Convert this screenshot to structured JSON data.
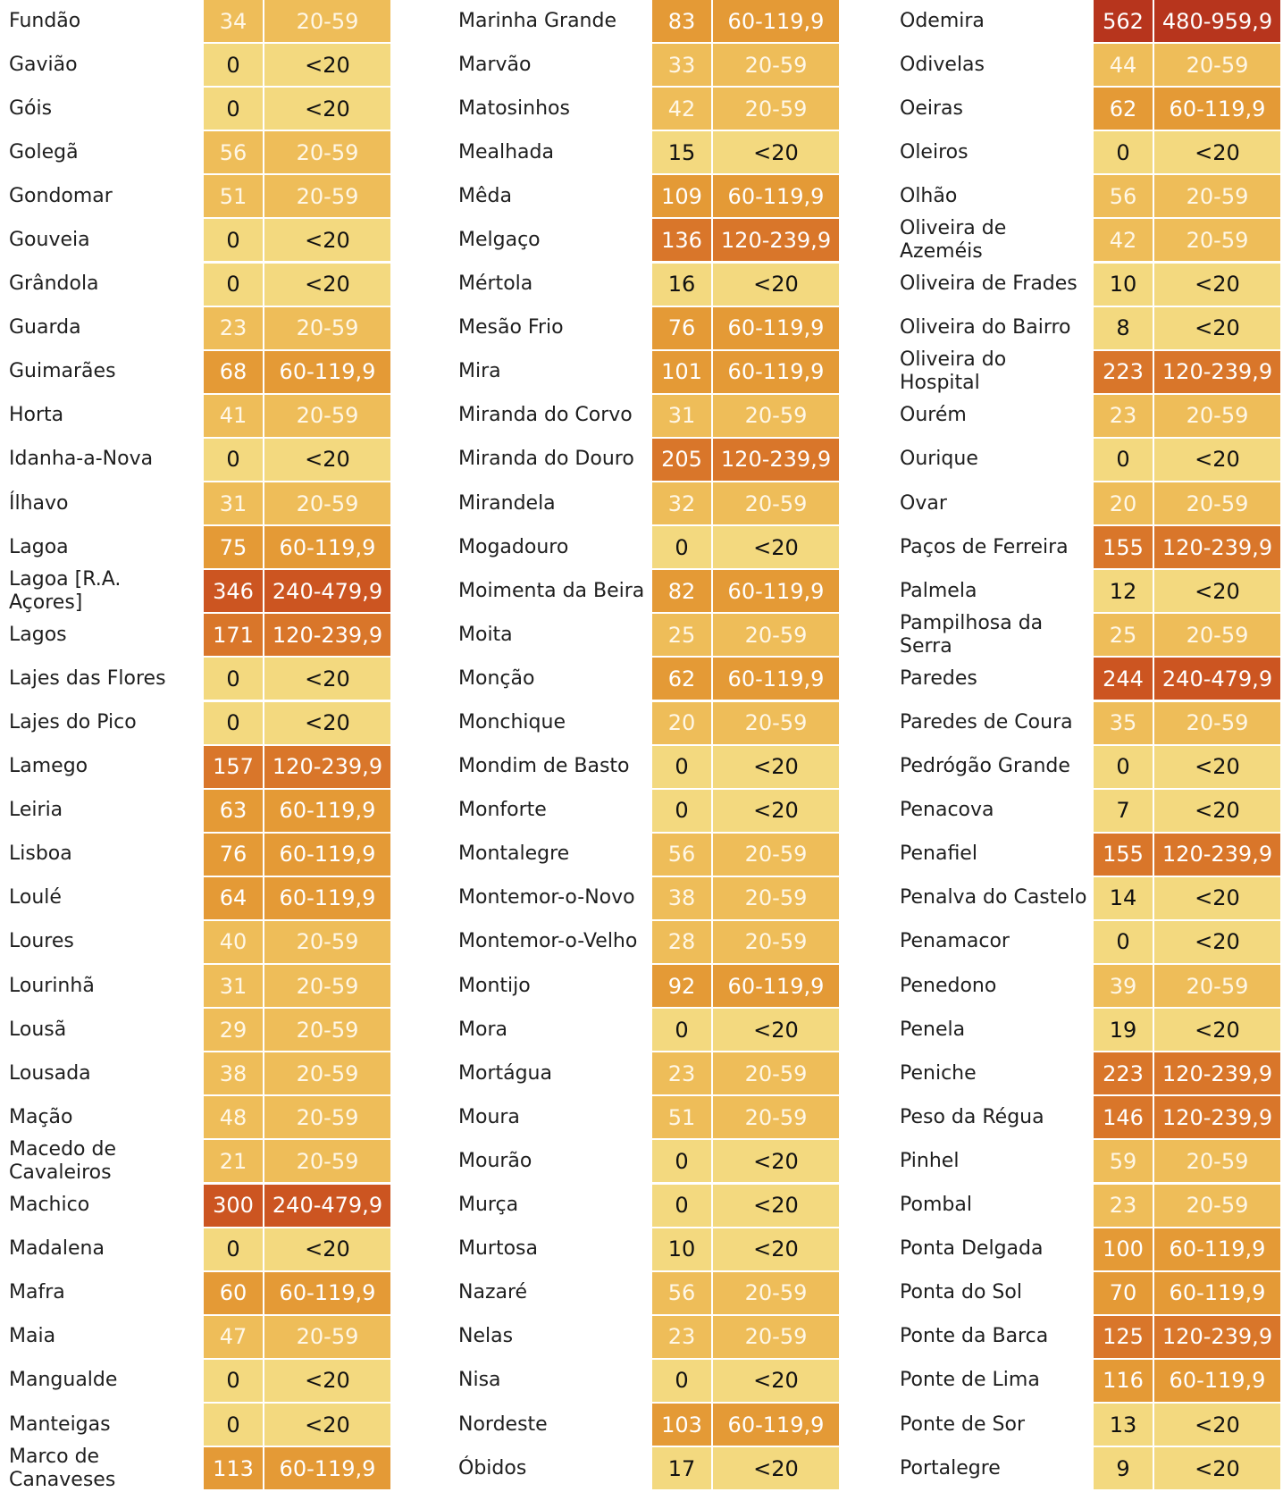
{
  "colors": {
    "<20": "#f3d97f",
    "20-59": "#eebd59",
    "60-119,9": "#e49a36",
    "120-239,9": "#d9762a",
    "240-479,9": "#cc5521",
    "480-959,9": "#b7351d"
  },
  "columns": [
    {
      "rows": [
        {
          "name": "Fundão",
          "value": "34",
          "range": "20-59"
        },
        {
          "name": "Gavião",
          "value": "0",
          "range": "<20"
        },
        {
          "name": "Góis",
          "value": "0",
          "range": "<20"
        },
        {
          "name": "Golegã",
          "value": "56",
          "range": "20-59"
        },
        {
          "name": "Gondomar",
          "value": "51",
          "range": "20-59"
        },
        {
          "name": "Gouveia",
          "value": "0",
          "range": "<20"
        },
        {
          "name": "Grândola",
          "value": "0",
          "range": "<20"
        },
        {
          "name": "Guarda",
          "value": "23",
          "range": "20-59"
        },
        {
          "name": "Guimarães",
          "value": "68",
          "range": "60-119,9"
        },
        {
          "name": "Horta",
          "value": "41",
          "range": "20-59"
        },
        {
          "name": "Idanha-a-Nova",
          "value": "0",
          "range": "<20"
        },
        {
          "name": "Ílhavo",
          "value": "31",
          "range": "20-59"
        },
        {
          "name": "Lagoa",
          "value": "75",
          "range": "60-119,9"
        },
        {
          "name": "Lagoa [R.A. Açores]",
          "value": "346",
          "range": "240-479,9"
        },
        {
          "name": "Lagos",
          "value": "171",
          "range": "120-239,9"
        },
        {
          "name": "Lajes das Flores",
          "value": "0",
          "range": "<20"
        },
        {
          "name": "Lajes do Pico",
          "value": "0",
          "range": "<20"
        },
        {
          "name": "Lamego",
          "value": "157",
          "range": "120-239,9"
        },
        {
          "name": "Leiria",
          "value": "63",
          "range": "60-119,9"
        },
        {
          "name": "Lisboa",
          "value": "76",
          "range": "60-119,9"
        },
        {
          "name": "Loulé",
          "value": "64",
          "range": "60-119,9"
        },
        {
          "name": "Loures",
          "value": "40",
          "range": "20-59"
        },
        {
          "name": "Lourinhã",
          "value": "31",
          "range": "20-59"
        },
        {
          "name": "Lousã",
          "value": "29",
          "range": "20-59"
        },
        {
          "name": "Lousada",
          "value": "38",
          "range": "20-59"
        },
        {
          "name": "Mação",
          "value": "48",
          "range": "20-59"
        },
        {
          "name": "Macedo de Cavaleiros",
          "value": "21",
          "range": "20-59"
        },
        {
          "name": "Machico",
          "value": "300",
          "range": "240-479,9"
        },
        {
          "name": "Madalena",
          "value": "0",
          "range": "<20"
        },
        {
          "name": "Mafra",
          "value": "60",
          "range": "60-119,9"
        },
        {
          "name": "Maia",
          "value": "47",
          "range": "20-59"
        },
        {
          "name": "Mangualde",
          "value": "0",
          "range": "<20"
        },
        {
          "name": "Manteigas",
          "value": "0",
          "range": "<20"
        },
        {
          "name": "Marco de Canaveses",
          "value": "113",
          "range": "60-119,9"
        }
      ]
    },
    {
      "rows": [
        {
          "name": "Marinha Grande",
          "value": "83",
          "range": "60-119,9"
        },
        {
          "name": "Marvão",
          "value": "33",
          "range": "20-59"
        },
        {
          "name": "Matosinhos",
          "value": "42",
          "range": "20-59"
        },
        {
          "name": "Mealhada",
          "value": "15",
          "range": "<20"
        },
        {
          "name": "Mêda",
          "value": "109",
          "range": "60-119,9"
        },
        {
          "name": "Melgaço",
          "value": "136",
          "range": "120-239,9"
        },
        {
          "name": "Mértola",
          "value": "16",
          "range": "<20"
        },
        {
          "name": "Mesão Frio",
          "value": "76",
          "range": "60-119,9"
        },
        {
          "name": "Mira",
          "value": "101",
          "range": "60-119,9"
        },
        {
          "name": "Miranda do Corvo",
          "value": "31",
          "range": "20-59"
        },
        {
          "name": "Miranda do Douro",
          "value": "205",
          "range": "120-239,9"
        },
        {
          "name": "Mirandela",
          "value": "32",
          "range": "20-59"
        },
        {
          "name": "Mogadouro",
          "value": "0",
          "range": "<20"
        },
        {
          "name": "Moimenta da Beira",
          "value": "82",
          "range": "60-119,9"
        },
        {
          "name": "Moita",
          "value": "25",
          "range": "20-59"
        },
        {
          "name": "Monção",
          "value": "62",
          "range": "60-119,9"
        },
        {
          "name": "Monchique",
          "value": "20",
          "range": "20-59"
        },
        {
          "name": "Mondim de Basto",
          "value": "0",
          "range": "<20"
        },
        {
          "name": "Monforte",
          "value": "0",
          "range": "<20"
        },
        {
          "name": "Montalegre",
          "value": "56",
          "range": "20-59"
        },
        {
          "name": "Montemor-o-Novo",
          "value": "38",
          "range": "20-59"
        },
        {
          "name": "Montemor-o-Velho",
          "value": "28",
          "range": "20-59"
        },
        {
          "name": "Montijo",
          "value": "92",
          "range": "60-119,9"
        },
        {
          "name": "Mora",
          "value": "0",
          "range": "<20"
        },
        {
          "name": "Mortágua",
          "value": "23",
          "range": "20-59"
        },
        {
          "name": "Moura",
          "value": "51",
          "range": "20-59"
        },
        {
          "name": "Mourão",
          "value": "0",
          "range": "<20"
        },
        {
          "name": "Murça",
          "value": "0",
          "range": "<20"
        },
        {
          "name": "Murtosa",
          "value": "10",
          "range": "<20"
        },
        {
          "name": "Nazaré",
          "value": "56",
          "range": "20-59"
        },
        {
          "name": "Nelas",
          "value": "23",
          "range": "20-59"
        },
        {
          "name": "Nisa",
          "value": "0",
          "range": "<20"
        },
        {
          "name": "Nordeste",
          "value": "103",
          "range": "60-119,9"
        },
        {
          "name": "Óbidos",
          "value": "17",
          "range": "<20"
        }
      ]
    },
    {
      "rows": [
        {
          "name": "Odemira",
          "value": "562",
          "range": "480-959,9"
        },
        {
          "name": "Odivelas",
          "value": "44",
          "range": "20-59"
        },
        {
          "name": "Oeiras",
          "value": "62",
          "range": "60-119,9"
        },
        {
          "name": "Oleiros",
          "value": "0",
          "range": "<20"
        },
        {
          "name": "Olhão",
          "value": "56",
          "range": "20-59"
        },
        {
          "name": "Oliveira de Azeméis",
          "value": "42",
          "range": "20-59"
        },
        {
          "name": "Oliveira de Frades",
          "value": "10",
          "range": "<20"
        },
        {
          "name": "Oliveira do Bairro",
          "value": "8",
          "range": "<20"
        },
        {
          "name": "Oliveira do Hospital",
          "value": "223",
          "range": "120-239,9"
        },
        {
          "name": "Ourém",
          "value": "23",
          "range": "20-59"
        },
        {
          "name": "Ourique",
          "value": "0",
          "range": "<20"
        },
        {
          "name": "Ovar",
          "value": "20",
          "range": "20-59"
        },
        {
          "name": "Paços de Ferreira",
          "value": "155",
          "range": "120-239,9"
        },
        {
          "name": "Palmela",
          "value": "12",
          "range": "<20"
        },
        {
          "name": "Pampilhosa da Serra",
          "value": "25",
          "range": "20-59"
        },
        {
          "name": "Paredes",
          "value": "244",
          "range": "240-479,9"
        },
        {
          "name": "Paredes de Coura",
          "value": "35",
          "range": "20-59"
        },
        {
          "name": "Pedrógão Grande",
          "value": "0",
          "range": "<20"
        },
        {
          "name": "Penacova",
          "value": "7",
          "range": "<20"
        },
        {
          "name": "Penafiel",
          "value": "155",
          "range": "120-239,9"
        },
        {
          "name": "Penalva do Castelo",
          "value": "14",
          "range": "<20"
        },
        {
          "name": "Penamacor",
          "value": "0",
          "range": "<20"
        },
        {
          "name": "Penedono",
          "value": "39",
          "range": "20-59"
        },
        {
          "name": "Penela",
          "value": "19",
          "range": "<20"
        },
        {
          "name": "Peniche",
          "value": "223",
          "range": "120-239,9"
        },
        {
          "name": "Peso da Régua",
          "value": "146",
          "range": "120-239,9"
        },
        {
          "name": "Pinhel",
          "value": "59",
          "range": "20-59"
        },
        {
          "name": "Pombal",
          "value": "23",
          "range": "20-59"
        },
        {
          "name": "Ponta Delgada",
          "value": "100",
          "range": "60-119,9"
        },
        {
          "name": "Ponta do Sol",
          "value": "70",
          "range": "60-119,9"
        },
        {
          "name": "Ponte da Barca",
          "value": "125",
          "range": "120-239,9"
        },
        {
          "name": "Ponte de Lima",
          "value": "116",
          "range": "60-119,9"
        },
        {
          "name": "Ponte de Sor",
          "value": "13",
          "range": "<20"
        },
        {
          "name": "Portalegre",
          "value": "9",
          "range": "<20"
        }
      ]
    }
  ]
}
